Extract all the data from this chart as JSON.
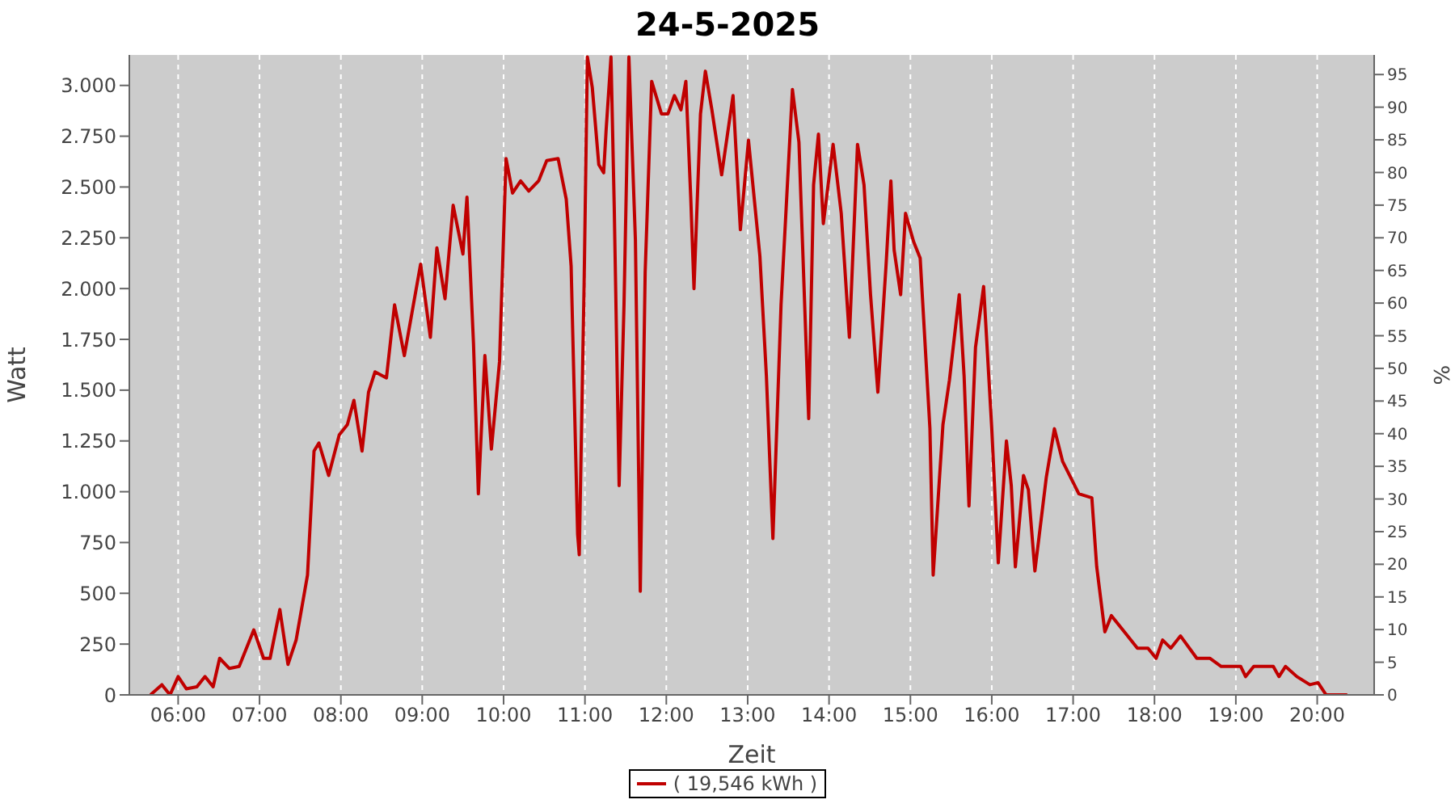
{
  "chart_data": {
    "type": "line",
    "title": "24-5-2025",
    "xlabel": "Zeit",
    "ylabel": "Watt",
    "y2label": "%",
    "xlim": [
      5.4,
      20.7
    ],
    "xticks": [
      {
        "value": 6,
        "label": "06:00"
      },
      {
        "value": 7,
        "label": "07:00"
      },
      {
        "value": 8,
        "label": "08:00"
      },
      {
        "value": 9,
        "label": "09:00"
      },
      {
        "value": 10,
        "label": "10:00"
      },
      {
        "value": 11,
        "label": "11:00"
      },
      {
        "value": 12,
        "label": "12:00"
      },
      {
        "value": 13,
        "label": "13:00"
      },
      {
        "value": 14,
        "label": "14:00"
      },
      {
        "value": 15,
        "label": "15:00"
      },
      {
        "value": 16,
        "label": "16:00"
      },
      {
        "value": 17,
        "label": "17:00"
      },
      {
        "value": 18,
        "label": "18:00"
      },
      {
        "value": 19,
        "label": "19:00"
      },
      {
        "value": 20,
        "label": "20:00"
      }
    ],
    "ylim": [
      0,
      3150
    ],
    "yticks": [
      0,
      250,
      500,
      750,
      {
        "value": 1000,
        "label": "1.000"
      },
      {
        "value": 1250,
        "label": "1.250"
      },
      {
        "value": 1500,
        "label": "1.500"
      },
      {
        "value": 1750,
        "label": "1.750"
      },
      {
        "value": 2000,
        "label": "2.000"
      },
      {
        "value": 2250,
        "label": "2.250"
      },
      {
        "value": 2500,
        "label": "2.500"
      },
      {
        "value": 2750,
        "label": "2.750"
      },
      {
        "value": 3000,
        "label": "3.000"
      }
    ],
    "y2lim": [
      0,
      98
    ],
    "y2ticks": [
      0,
      5,
      10,
      15,
      20,
      25,
      30,
      35,
      40,
      45,
      50,
      55,
      60,
      65,
      70,
      75,
      80,
      85,
      90,
      95
    ],
    "grid": true,
    "legend": "bottom",
    "marker": "none",
    "line_style": "solid",
    "x": [
      5.66,
      5.8,
      5.9,
      6.0,
      6.1,
      6.23,
      6.33,
      6.43,
      6.51,
      6.63,
      6.75,
      6.93,
      7.05,
      7.13,
      7.25,
      7.35,
      7.45,
      7.59,
      7.67,
      7.73,
      7.85,
      7.98,
      8.08,
      8.16,
      8.26,
      8.34,
      8.42,
      8.56,
      8.66,
      8.78,
      8.98,
      9.1,
      9.18,
      9.28,
      9.38,
      9.5,
      9.55,
      9.63,
      9.69,
      9.77,
      9.85,
      9.95,
      10.03,
      10.11,
      10.21,
      10.31,
      10.43,
      10.53,
      10.67,
      10.77,
      10.83,
      10.91,
      10.93,
      10.99,
      11.03,
      11.09,
      11.17,
      11.23,
      11.26,
      11.32,
      11.36,
      11.42,
      11.48,
      11.54,
      11.62,
      11.68,
      11.74,
      11.82,
      11.94,
      12.02,
      12.1,
      12.18,
      12.24,
      12.3,
      12.34,
      12.42,
      12.48,
      12.56,
      12.68,
      12.82,
      12.91,
      13.01,
      13.15,
      13.23,
      13.31,
      13.41,
      13.55,
      13.63,
      13.75,
      13.81,
      13.87,
      13.93,
      14.05,
      14.15,
      14.25,
      14.35,
      14.43,
      14.51,
      14.6,
      14.7,
      14.76,
      14.8,
      14.88,
      14.94,
      15.04,
      15.12,
      15.24,
      15.28,
      15.4,
      15.48,
      15.6,
      15.66,
      15.72,
      15.8,
      15.9,
      16.0,
      16.08,
      16.18,
      16.24,
      16.29,
      16.39,
      16.45,
      16.53,
      16.67,
      16.77,
      16.87,
      17.07,
      17.23,
      17.29,
      17.39,
      17.47,
      17.63,
      17.79,
      17.92,
      18.02,
      18.1,
      18.2,
      18.32,
      18.52,
      18.68,
      18.82,
      19.06,
      19.12,
      19.22,
      19.46,
      19.53,
      19.61,
      19.75,
      19.91,
      20.01,
      20.11,
      20.37
    ],
    "series": [
      {
        "name": "( 19,546 kWh )",
        "color": "#c00000",
        "values": [
          0,
          50,
          0,
          90,
          30,
          40,
          90,
          40,
          180,
          130,
          140,
          320,
          180,
          180,
          420,
          150,
          270,
          590,
          1200,
          1240,
          1080,
          1280,
          1330,
          1450,
          1200,
          1490,
          1590,
          1560,
          1920,
          1670,
          2120,
          1760,
          2200,
          1950,
          2410,
          2170,
          2450,
          1730,
          990,
          1670,
          1210,
          1640,
          2640,
          2470,
          2530,
          2480,
          2530,
          2630,
          2640,
          2440,
          2110,
          790,
          690,
          2030,
          3140,
          2990,
          2610,
          2570,
          2780,
          3140,
          2400,
          1030,
          1920,
          3140,
          2240,
          510,
          2080,
          3020,
          2860,
          2860,
          2950,
          2880,
          3020,
          2450,
          2000,
          2860,
          3070,
          2880,
          2560,
          2950,
          2290,
          2730,
          2160,
          1570,
          770,
          1920,
          2980,
          2720,
          1360,
          2510,
          2760,
          2320,
          2710,
          2370,
          1760,
          2710,
          2510,
          1970,
          1490,
          2110,
          2530,
          2190,
          1970,
          2370,
          2230,
          2150,
          1310,
          590,
          1330,
          1550,
          1970,
          1570,
          930,
          1710,
          2010,
          1310,
          650,
          1250,
          1030,
          630,
          1080,
          1010,
          610,
          1070,
          1310,
          1150,
          990,
          970,
          630,
          310,
          390,
          310,
          230,
          230,
          180,
          270,
          230,
          290,
          180,
          180,
          140,
          140,
          90,
          140,
          140,
          90,
          140,
          90,
          50,
          60,
          0,
          0
        ]
      }
    ]
  }
}
